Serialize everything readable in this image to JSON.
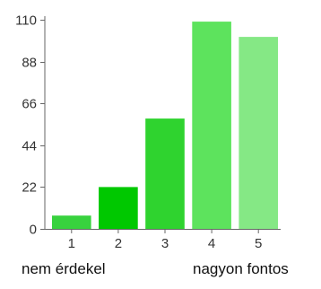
{
  "chart_data": {
    "type": "bar",
    "categories": [
      "1",
      "2",
      "3",
      "4",
      "5"
    ],
    "values": [
      7,
      22,
      58,
      109,
      101
    ],
    "yticks": [
      "0",
      "22",
      "44",
      "66",
      "88",
      "110"
    ],
    "ylim": [
      0,
      110
    ],
    "colors": [
      "#38d23e",
      "#00c800",
      "#2fd32f",
      "#5de35d",
      "#85e885"
    ],
    "axis_color": "#666666",
    "grid": false,
    "legend": "none",
    "title": "",
    "xlabel": "",
    "ylabel": ""
  },
  "scale_labels": {
    "low": "nem érdekel",
    "high": "nagyon fontos"
  }
}
